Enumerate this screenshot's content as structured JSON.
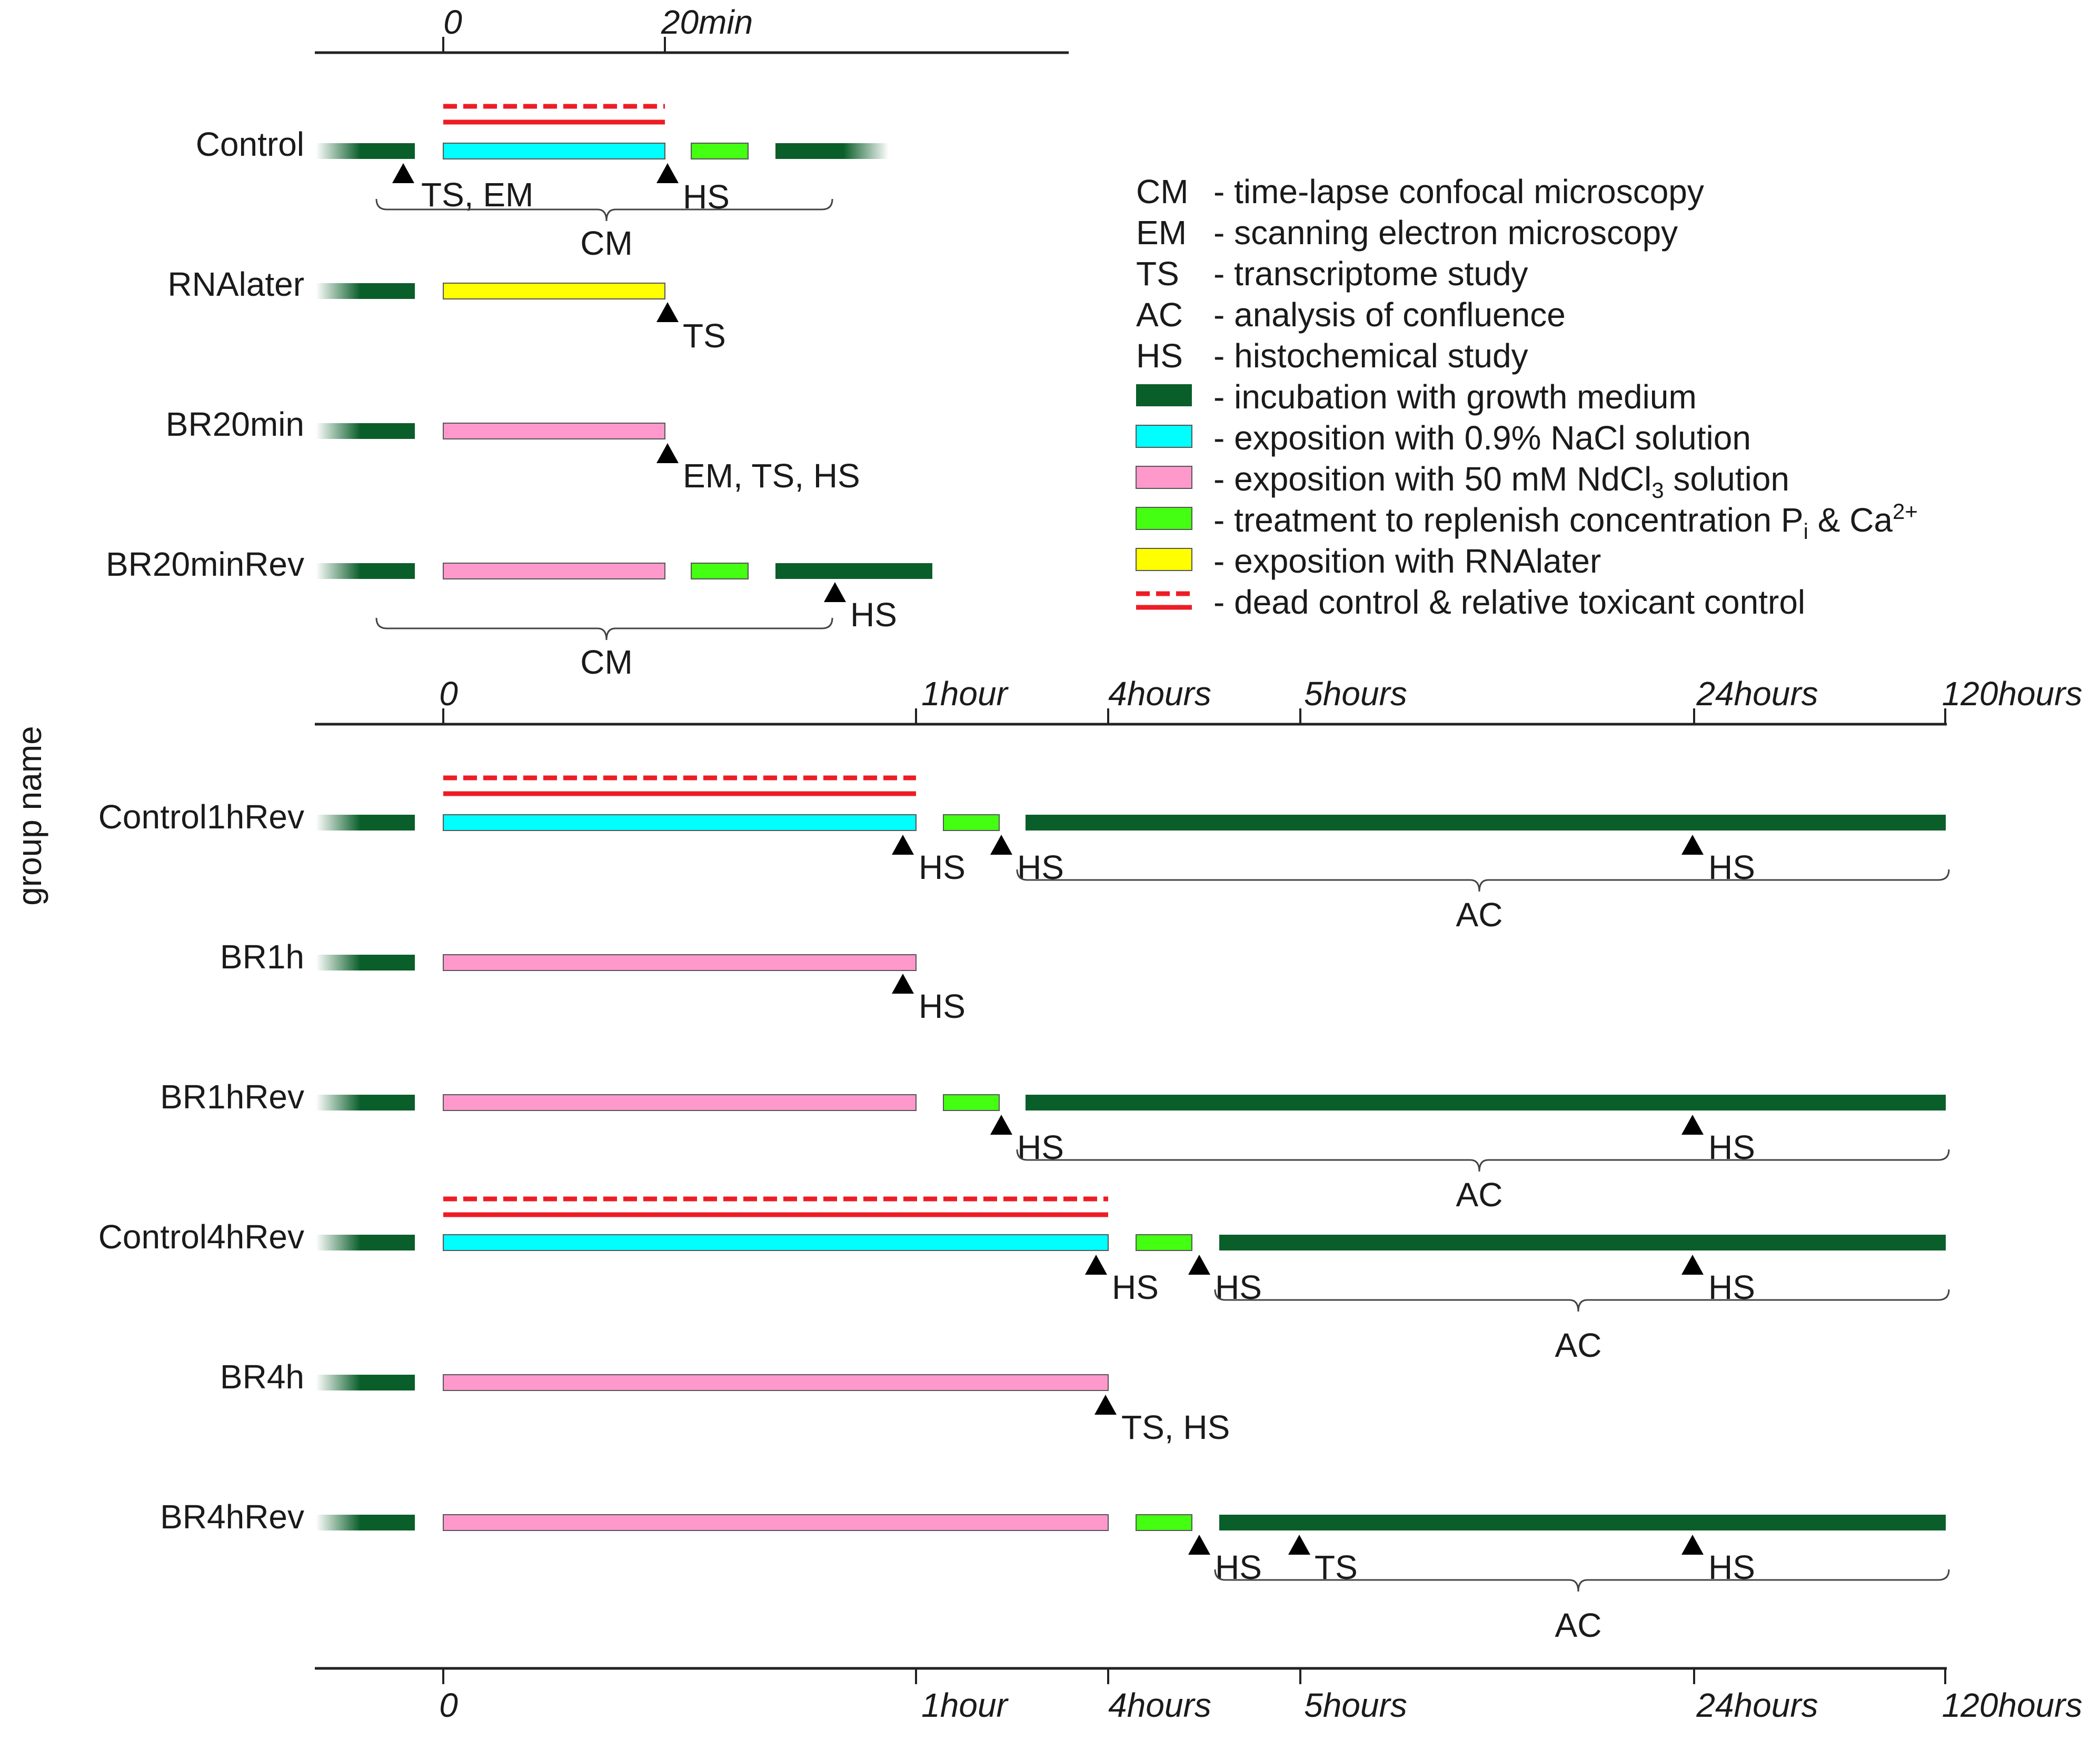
{
  "y_axis_title": "group name",
  "axes": {
    "top": {
      "zero": "0",
      "t20": "20min"
    },
    "middle": {
      "zero": "0",
      "h1": "1hour",
      "h4": "4hours",
      "h5": "5hours",
      "h24": "24hours",
      "h120": "120hours"
    },
    "bottom": {
      "zero": "0",
      "h1": "1hour",
      "h4": "4hours",
      "h5": "5hours",
      "h24": "24hours",
      "h120": "120hours"
    }
  },
  "groups": {
    "control": "Control",
    "rnalater": "RNAlater",
    "br20min": "BR20min",
    "br20minrev": "BR20minRev",
    "control1hrev": "Control1hRev",
    "br1h": "BR1h",
    "br1hrev": "BR1hRev",
    "control4hrev": "Control4hRev",
    "br4h": "BR4h",
    "br4hrev": "BR4hRev"
  },
  "annotations": {
    "ts_em": "TS, EM",
    "hs": "HS",
    "ts": "TS",
    "em_ts_hs": "EM, TS, HS",
    "ts_hs": "TS, HS",
    "cm": "CM",
    "ac": "AC"
  },
  "legend": {
    "abbreviations": [
      {
        "code": "CM",
        "desc": "- time-lapse confocal microscopy"
      },
      {
        "code": "EM",
        "desc": "- scanning electron microscopy"
      },
      {
        "code": "TS",
        "desc": "- transcriptome study"
      },
      {
        "code": "AC",
        "desc": "- analysis of confluence"
      },
      {
        "code": "HS",
        "desc": "- histochemical study"
      }
    ],
    "swatches": [
      {
        "desc": "- incubation with growth medium",
        "color": "#0a5e2a"
      },
      {
        "desc": "- exposition with 0.9% NaCl solution",
        "color": "#00ffff"
      },
      {
        "desc_pre": "- exposition with 50 mM NdCl",
        "desc_sub": "3",
        "desc_post": " solution",
        "color": "#ff99cc"
      },
      {
        "desc_pre": "- treatment to replenish concentration P",
        "desc_sub": "i",
        "desc_mid": " & Ca",
        "desc_sup": "2+",
        "color": "#44ff11"
      },
      {
        "desc": "- exposition with RNAlater",
        "color": "#ffff00"
      },
      {
        "desc": "- dead control & relative toxicant control",
        "color": "#ee1c24"
      }
    ]
  },
  "colors": {
    "growth": "#0a5e2a",
    "nacl": "#00ffff",
    "ndcl3": "#ff99cc",
    "replenish": "#44ff11",
    "rnalater": "#ffff00",
    "control_line": "#ee1c24"
  }
}
